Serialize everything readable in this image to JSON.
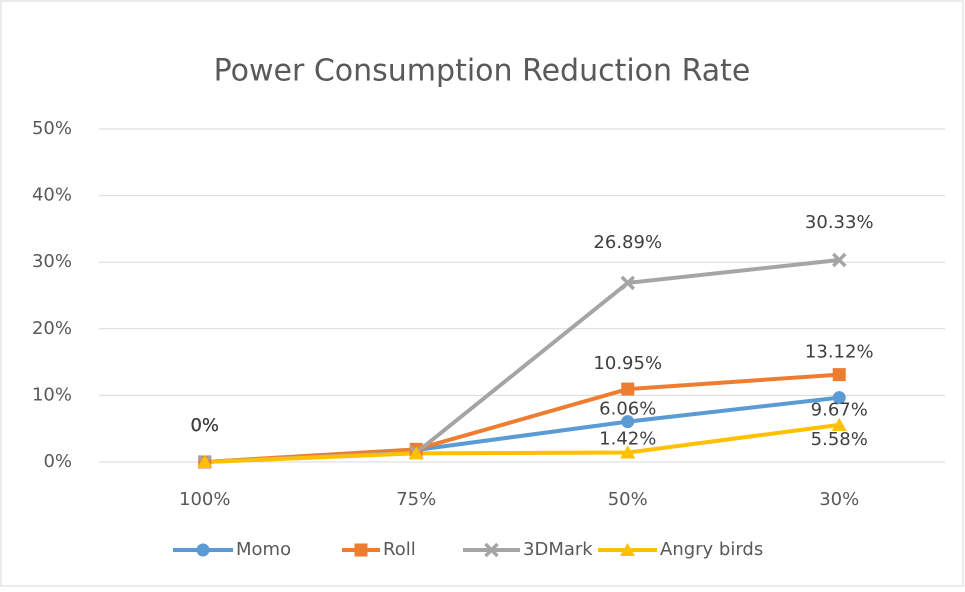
{
  "chart_data": {
    "type": "line",
    "title": "Power Consumption Reduction Rate",
    "categories": [
      "100%",
      "75%",
      "50%",
      "30%"
    ],
    "series": [
      {
        "name": "Momo",
        "color": "#5b9bd5",
        "marker": "circle",
        "values": [
          0,
          1.8,
          6.06,
          9.67
        ],
        "value_labels": [
          "0%",
          null,
          "6.06%",
          "9.67%"
        ]
      },
      {
        "name": "Roll",
        "color": "#ed7d31",
        "marker": "square",
        "values": [
          0,
          1.9,
          10.95,
          13.12
        ],
        "value_labels": [
          "0%",
          null,
          "10.95%",
          "13.12%"
        ]
      },
      {
        "name": "3DMark",
        "color": "#a5a5a5",
        "marker": "x",
        "values": [
          0,
          1.4,
          26.89,
          30.33
        ],
        "value_labels": [
          "0%",
          null,
          "26.89%",
          "30.33%"
        ]
      },
      {
        "name": "Angry birds",
        "color": "#ffc000",
        "marker": "triangle",
        "values": [
          0,
          1.3,
          1.42,
          5.58
        ],
        "value_labels": [
          "0%",
          null,
          "1.42%",
          "5.58%"
        ]
      }
    ],
    "ylim": [
      0,
      50
    ],
    "yticks": [
      {
        "value": 0,
        "label": "0%"
      },
      {
        "value": 10,
        "label": "10%"
      },
      {
        "value": 20,
        "label": "20%"
      },
      {
        "value": 30,
        "label": "30%"
      },
      {
        "value": 40,
        "label": "40%"
      },
      {
        "value": 50,
        "label": "50%"
      }
    ],
    "grid": true,
    "legend": "bottom"
  }
}
